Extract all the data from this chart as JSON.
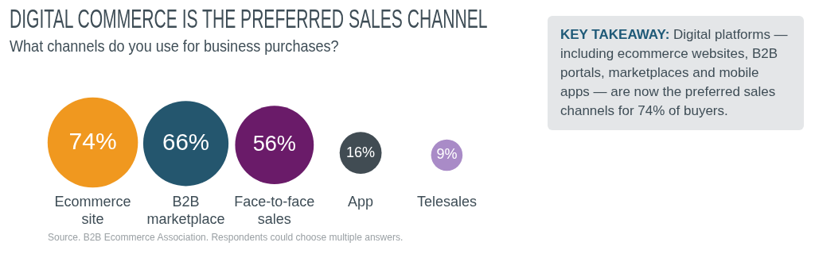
{
  "chart_data": {
    "type": "other",
    "title": "DIGITAL COMMERCE IS THE PREFERRED SALES CHANNEL",
    "subtitle": "What channels do you use for business purchases?",
    "categories": [
      "Ecommerce site",
      "B2B marketplace",
      "Face-to-face sales",
      "App",
      "Telesales"
    ],
    "values": [
      74,
      66,
      56,
      16,
      9
    ],
    "value_labels": [
      "74%",
      "66%",
      "56%",
      "16%",
      "9%"
    ],
    "colors": [
      "#f0981f",
      "#24566e",
      "#6a1b69",
      "#414c53",
      "#a98bc7"
    ],
    "annotations": [
      "KEY TAKEAWAY: Digital platforms — including ecommerce websites, B2B portals, marketplaces and mobile apps — are now the preferred sales channels for 74% of buyers.",
      "Source. B2B Ecommerce Association. Respondents could choose multiple answers."
    ]
  }
}
